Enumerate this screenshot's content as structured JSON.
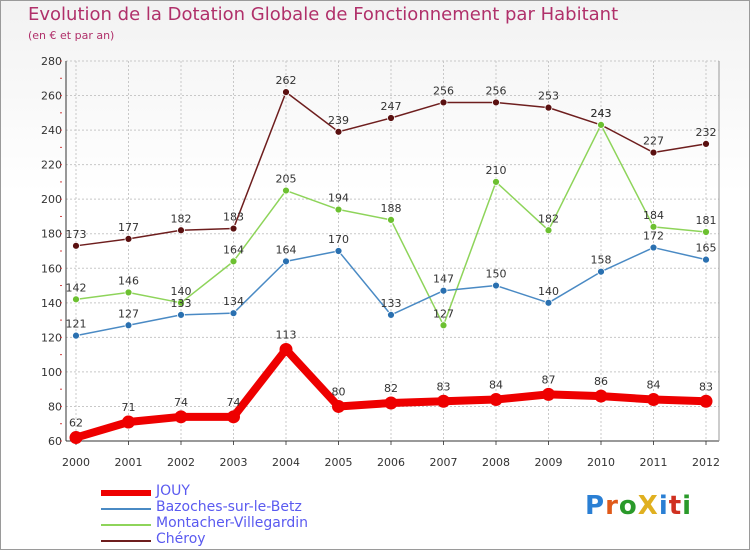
{
  "title": "Evolution de la Dotation Globale de Fonctionnement par Habitant",
  "subtitle": "(en € et par an)",
  "logo": {
    "text": "ProXiti",
    "colors": [
      "#2a7fd4",
      "#e05a1a",
      "#2a9a2a",
      "#e0b020",
      "#2a7fd4",
      "#d03020",
      "#2a9a2a"
    ]
  },
  "chart_data": {
    "type": "line",
    "categories": [
      "2000",
      "2001",
      "2002",
      "2003",
      "2004",
      "2005",
      "2006",
      "2007",
      "2008",
      "2009",
      "2010",
      "2011",
      "2012"
    ],
    "ylim": [
      60,
      280
    ],
    "yticks": [
      60,
      80,
      100,
      120,
      140,
      160,
      180,
      200,
      220,
      240,
      260,
      280
    ],
    "grid": true,
    "legend_position": "bottom-left",
    "series": [
      {
        "name": "JOUY",
        "color": "#ee0000",
        "values": [
          62,
          71,
          74,
          74,
          113,
          80,
          82,
          83,
          84,
          87,
          86,
          84,
          83
        ]
      },
      {
        "name": "Bazoches-sur-le-Betz",
        "color": "#4a8ac4",
        "values": [
          121,
          127,
          133,
          134,
          164,
          170,
          133,
          147,
          150,
          140,
          158,
          172,
          165
        ]
      },
      {
        "name": "Montacher-Villegardin",
        "color": "#8ed45a",
        "values": [
          142,
          146,
          140,
          164,
          205,
          194,
          188,
          127,
          210,
          182,
          243,
          184,
          181
        ]
      },
      {
        "name": "Chéroy",
        "color": "#6e1e1e",
        "values": [
          173,
          177,
          182,
          183,
          262,
          239,
          247,
          256,
          256,
          253,
          243,
          227,
          232
        ]
      }
    ]
  }
}
